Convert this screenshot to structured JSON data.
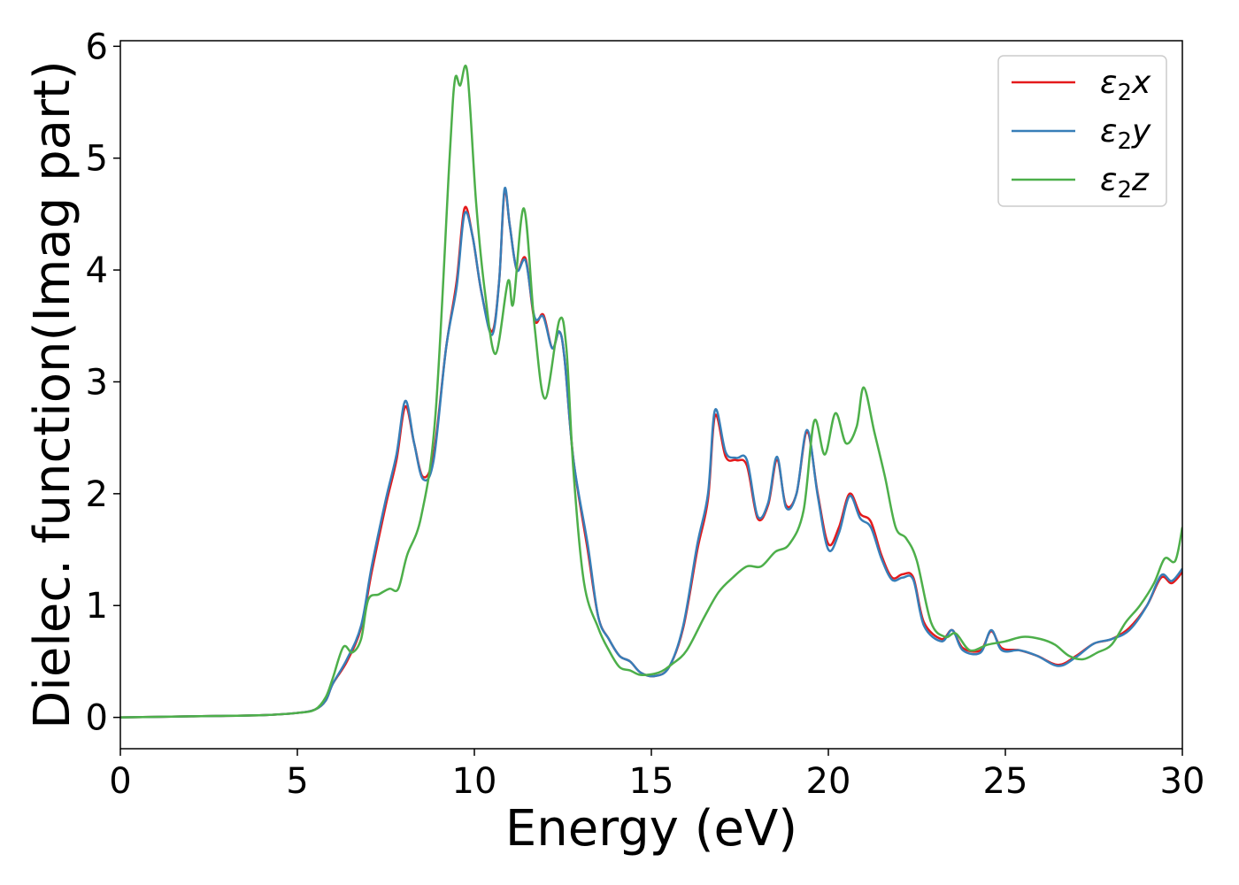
{
  "chart_data": {
    "type": "line",
    "xlabel": "Energy (eV)",
    "ylabel": "Dielec. function(Imag part)",
    "xlim": [
      0,
      30
    ],
    "ylim": [
      -0.28,
      6.05
    ],
    "xticks": [
      0,
      5,
      10,
      15,
      20,
      25,
      30
    ],
    "yticks": [
      0,
      1,
      2,
      3,
      4,
      5,
      6
    ],
    "grid": false,
    "legend_position": "top-right",
    "series": [
      {
        "name": "ε2x",
        "legend_base": "ε",
        "legend_sub": "2",
        "legend_var": "x",
        "color": "#e41a1c",
        "points": [
          [
            0,
            0.0
          ],
          [
            2,
            0.01
          ],
          [
            4,
            0.02
          ],
          [
            5,
            0.04
          ],
          [
            5.5,
            0.07
          ],
          [
            5.8,
            0.15
          ],
          [
            6,
            0.3
          ],
          [
            6.4,
            0.5
          ],
          [
            6.8,
            0.8
          ],
          [
            7.1,
            1.3
          ],
          [
            7.5,
            1.9
          ],
          [
            7.8,
            2.3
          ],
          [
            8.05,
            2.78
          ],
          [
            8.3,
            2.45
          ],
          [
            8.55,
            2.15
          ],
          [
            8.85,
            2.35
          ],
          [
            9.2,
            3.3
          ],
          [
            9.5,
            3.9
          ],
          [
            9.72,
            4.55
          ],
          [
            9.95,
            4.3
          ],
          [
            10.2,
            3.8
          ],
          [
            10.5,
            3.45
          ],
          [
            10.7,
            3.9
          ],
          [
            10.85,
            4.7
          ],
          [
            11.0,
            4.4
          ],
          [
            11.2,
            4.0
          ],
          [
            11.45,
            4.1
          ],
          [
            11.7,
            3.55
          ],
          [
            11.95,
            3.6
          ],
          [
            12.2,
            3.3
          ],
          [
            12.4,
            3.45
          ],
          [
            12.55,
            3.2
          ],
          [
            12.8,
            2.3
          ],
          [
            13.2,
            1.5
          ],
          [
            13.5,
            0.9
          ],
          [
            13.8,
            0.7
          ],
          [
            14.1,
            0.55
          ],
          [
            14.4,
            0.5
          ],
          [
            14.7,
            0.4
          ],
          [
            15.1,
            0.37
          ],
          [
            15.5,
            0.45
          ],
          [
            15.9,
            0.8
          ],
          [
            16.3,
            1.5
          ],
          [
            16.6,
            1.95
          ],
          [
            16.8,
            2.7
          ],
          [
            17.1,
            2.33
          ],
          [
            17.4,
            2.3
          ],
          [
            17.7,
            2.25
          ],
          [
            18.0,
            1.78
          ],
          [
            18.3,
            1.9
          ],
          [
            18.55,
            2.3
          ],
          [
            18.8,
            1.9
          ],
          [
            19.1,
            2.0
          ],
          [
            19.4,
            2.55
          ],
          [
            19.7,
            2.0
          ],
          [
            20.0,
            1.55
          ],
          [
            20.3,
            1.7
          ],
          [
            20.6,
            2.0
          ],
          [
            20.9,
            1.82
          ],
          [
            21.2,
            1.75
          ],
          [
            21.5,
            1.45
          ],
          [
            21.8,
            1.25
          ],
          [
            22.1,
            1.28
          ],
          [
            22.4,
            1.25
          ],
          [
            22.7,
            0.85
          ],
          [
            23.2,
            0.7
          ],
          [
            23.5,
            0.78
          ],
          [
            23.8,
            0.62
          ],
          [
            24.3,
            0.6
          ],
          [
            24.6,
            0.77
          ],
          [
            24.9,
            0.62
          ],
          [
            25.4,
            0.6
          ],
          [
            25.9,
            0.55
          ],
          [
            26.5,
            0.47
          ],
          [
            27.0,
            0.55
          ],
          [
            27.5,
            0.66
          ],
          [
            28.0,
            0.7
          ],
          [
            28.5,
            0.8
          ],
          [
            29.0,
            1.0
          ],
          [
            29.4,
            1.25
          ],
          [
            29.7,
            1.2
          ],
          [
            30.0,
            1.3
          ]
        ]
      },
      {
        "name": "ε2y",
        "legend_base": "ε",
        "legend_sub": "2",
        "legend_var": "y",
        "color": "#377eb8",
        "points": [
          [
            0,
            0.0
          ],
          [
            2,
            0.01
          ],
          [
            4,
            0.02
          ],
          [
            5,
            0.04
          ],
          [
            5.5,
            0.07
          ],
          [
            5.8,
            0.15
          ],
          [
            6,
            0.3
          ],
          [
            6.4,
            0.52
          ],
          [
            6.8,
            0.82
          ],
          [
            7.1,
            1.35
          ],
          [
            7.5,
            1.95
          ],
          [
            7.8,
            2.35
          ],
          [
            8.05,
            2.83
          ],
          [
            8.3,
            2.45
          ],
          [
            8.55,
            2.13
          ],
          [
            8.85,
            2.3
          ],
          [
            9.2,
            3.3
          ],
          [
            9.5,
            3.85
          ],
          [
            9.72,
            4.5
          ],
          [
            9.95,
            4.3
          ],
          [
            10.2,
            3.8
          ],
          [
            10.5,
            3.42
          ],
          [
            10.7,
            3.9
          ],
          [
            10.85,
            4.72
          ],
          [
            11.0,
            4.4
          ],
          [
            11.2,
            4.0
          ],
          [
            11.45,
            4.08
          ],
          [
            11.7,
            3.58
          ],
          [
            11.95,
            3.58
          ],
          [
            12.2,
            3.3
          ],
          [
            12.4,
            3.45
          ],
          [
            12.55,
            3.2
          ],
          [
            12.8,
            2.3
          ],
          [
            13.2,
            1.55
          ],
          [
            13.5,
            0.9
          ],
          [
            13.8,
            0.7
          ],
          [
            14.1,
            0.55
          ],
          [
            14.4,
            0.5
          ],
          [
            14.7,
            0.4
          ],
          [
            15.1,
            0.37
          ],
          [
            15.5,
            0.45
          ],
          [
            15.9,
            0.82
          ],
          [
            16.3,
            1.55
          ],
          [
            16.6,
            2.0
          ],
          [
            16.8,
            2.75
          ],
          [
            17.1,
            2.37
          ],
          [
            17.4,
            2.32
          ],
          [
            17.7,
            2.3
          ],
          [
            18.0,
            1.8
          ],
          [
            18.3,
            1.92
          ],
          [
            18.55,
            2.33
          ],
          [
            18.8,
            1.88
          ],
          [
            19.1,
            2.0
          ],
          [
            19.4,
            2.57
          ],
          [
            19.7,
            1.98
          ],
          [
            20.0,
            1.5
          ],
          [
            20.3,
            1.65
          ],
          [
            20.6,
            1.98
          ],
          [
            20.9,
            1.78
          ],
          [
            21.2,
            1.7
          ],
          [
            21.5,
            1.42
          ],
          [
            21.8,
            1.23
          ],
          [
            22.1,
            1.25
          ],
          [
            22.4,
            1.23
          ],
          [
            22.7,
            0.82
          ],
          [
            23.2,
            0.68
          ],
          [
            23.5,
            0.78
          ],
          [
            23.8,
            0.6
          ],
          [
            24.3,
            0.58
          ],
          [
            24.6,
            0.78
          ],
          [
            24.9,
            0.6
          ],
          [
            25.4,
            0.6
          ],
          [
            25.9,
            0.55
          ],
          [
            26.5,
            0.46
          ],
          [
            27.0,
            0.54
          ],
          [
            27.5,
            0.66
          ],
          [
            28.0,
            0.7
          ],
          [
            28.5,
            0.78
          ],
          [
            29.0,
            1.0
          ],
          [
            29.4,
            1.27
          ],
          [
            29.7,
            1.22
          ],
          [
            30.0,
            1.33
          ]
        ]
      },
      {
        "name": "ε2z",
        "legend_base": "ε",
        "legend_sub": "2",
        "legend_var": "z",
        "color": "#4daf4a",
        "points": [
          [
            0,
            0.0
          ],
          [
            2,
            0.01
          ],
          [
            4,
            0.02
          ],
          [
            5,
            0.04
          ],
          [
            5.5,
            0.07
          ],
          [
            5.8,
            0.18
          ],
          [
            6,
            0.35
          ],
          [
            6.3,
            0.63
          ],
          [
            6.55,
            0.58
          ],
          [
            6.8,
            0.7
          ],
          [
            7.0,
            1.05
          ],
          [
            7.3,
            1.1
          ],
          [
            7.6,
            1.15
          ],
          [
            7.85,
            1.15
          ],
          [
            8.1,
            1.45
          ],
          [
            8.5,
            1.8
          ],
          [
            8.9,
            2.7
          ],
          [
            9.3,
            5.0
          ],
          [
            9.45,
            5.7
          ],
          [
            9.6,
            5.65
          ],
          [
            9.8,
            5.77
          ],
          [
            10.05,
            4.6
          ],
          [
            10.3,
            3.8
          ],
          [
            10.6,
            3.25
          ],
          [
            10.95,
            3.9
          ],
          [
            11.1,
            3.7
          ],
          [
            11.4,
            4.55
          ],
          [
            11.7,
            3.5
          ],
          [
            12.0,
            2.85
          ],
          [
            12.4,
            3.55
          ],
          [
            12.6,
            3.3
          ],
          [
            12.8,
            2.2
          ],
          [
            13.1,
            1.2
          ],
          [
            13.5,
            0.8
          ],
          [
            13.8,
            0.6
          ],
          [
            14.1,
            0.45
          ],
          [
            14.4,
            0.42
          ],
          [
            14.7,
            0.38
          ],
          [
            15.2,
            0.4
          ],
          [
            15.6,
            0.48
          ],
          [
            16.0,
            0.6
          ],
          [
            16.5,
            0.9
          ],
          [
            16.9,
            1.12
          ],
          [
            17.3,
            1.25
          ],
          [
            17.7,
            1.35
          ],
          [
            18.1,
            1.35
          ],
          [
            18.5,
            1.48
          ],
          [
            18.9,
            1.55
          ],
          [
            19.3,
            1.85
          ],
          [
            19.6,
            2.65
          ],
          [
            19.9,
            2.35
          ],
          [
            20.2,
            2.72
          ],
          [
            20.5,
            2.45
          ],
          [
            20.8,
            2.6
          ],
          [
            21.0,
            2.95
          ],
          [
            21.3,
            2.55
          ],
          [
            21.6,
            2.15
          ],
          [
            21.9,
            1.7
          ],
          [
            22.2,
            1.6
          ],
          [
            22.5,
            1.4
          ],
          [
            22.9,
            0.85
          ],
          [
            23.3,
            0.72
          ],
          [
            23.6,
            0.75
          ],
          [
            24.0,
            0.6
          ],
          [
            24.5,
            0.65
          ],
          [
            25.0,
            0.68
          ],
          [
            25.5,
            0.72
          ],
          [
            26.0,
            0.7
          ],
          [
            26.4,
            0.65
          ],
          [
            26.8,
            0.55
          ],
          [
            27.2,
            0.52
          ],
          [
            27.6,
            0.58
          ],
          [
            28.0,
            0.65
          ],
          [
            28.4,
            0.85
          ],
          [
            28.8,
            1.0
          ],
          [
            29.2,
            1.2
          ],
          [
            29.5,
            1.42
          ],
          [
            29.8,
            1.4
          ],
          [
            30.0,
            1.7
          ]
        ]
      }
    ]
  }
}
